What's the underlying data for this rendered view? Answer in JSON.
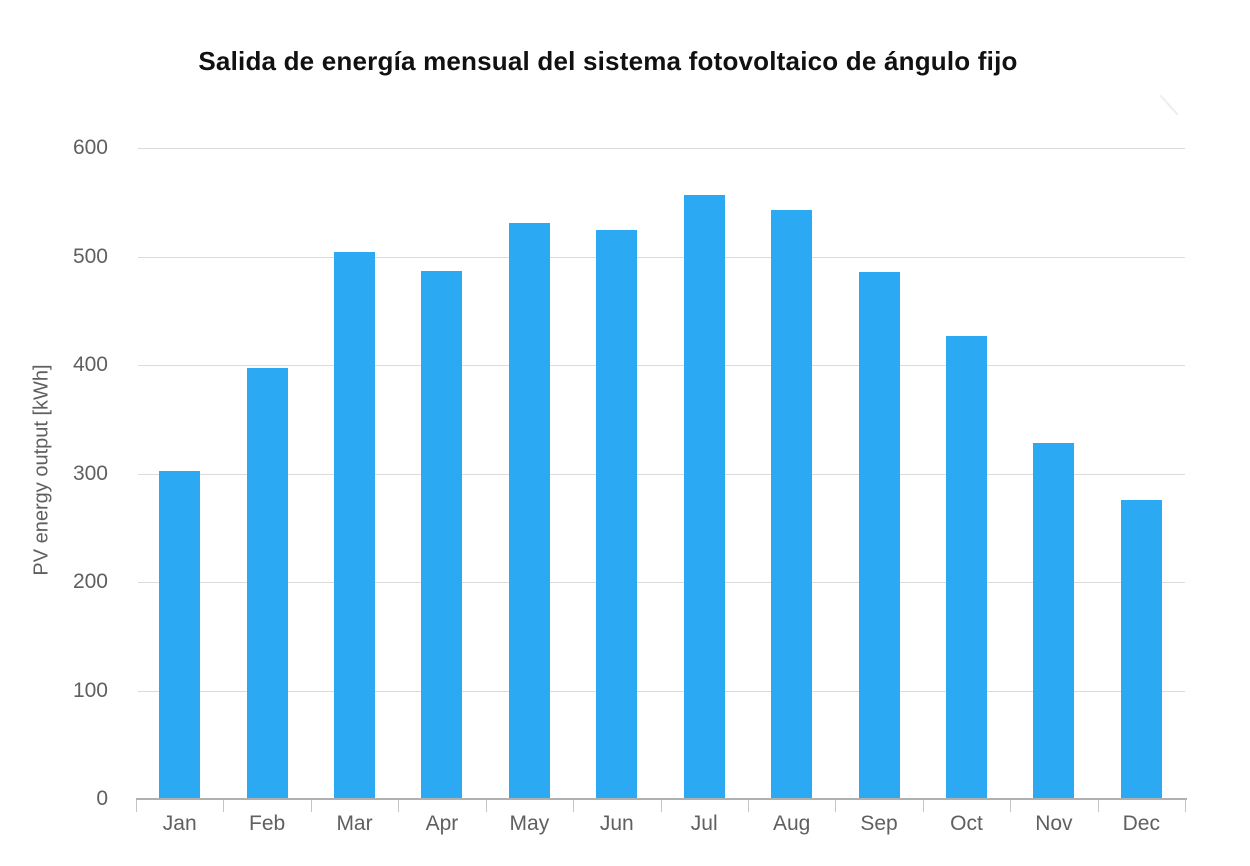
{
  "chart_data": {
    "type": "bar",
    "title": "Salida de energía mensual del sistema fotovoltaico de ángulo fijo",
    "categories": [
      "Jan",
      "Feb",
      "Mar",
      "Apr",
      "May",
      "Jun",
      "Jul",
      "Aug",
      "Sep",
      "Oct",
      "Nov",
      "Dec"
    ],
    "values": [
      302,
      397,
      504,
      487,
      531,
      524,
      557,
      543,
      486,
      427,
      328,
      276
    ],
    "xlabel": "",
    "ylabel": "PV energy output [kWh]",
    "ylim": [
      0,
      600
    ],
    "yticks": [
      0,
      100,
      200,
      300,
      400,
      500,
      600
    ],
    "grid": true,
    "legend": "none",
    "colors": {
      "bar": "#2BA9F2",
      "gridline": "#DBDBDB",
      "axis": "#B0B0B0",
      "tick_mark": "#C6C6C6",
      "tick_text": "#606060",
      "axis_label_text": "#5F5F5F",
      "title_text": "#111111",
      "background": "#FFFFFF",
      "artifact": "#DEDEDE"
    }
  }
}
